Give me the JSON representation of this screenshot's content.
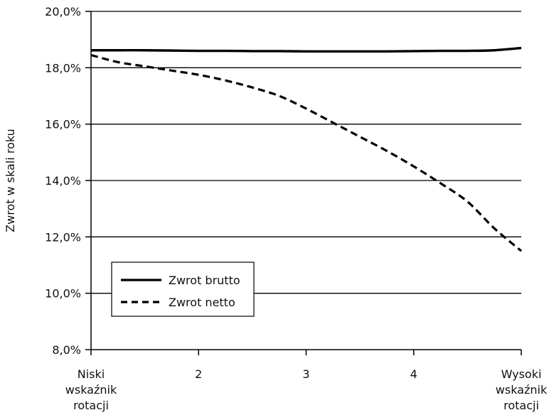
{
  "chart_data": {
    "type": "line",
    "title": "",
    "ylabel": "Zwrot w skali roku",
    "xlabel": "",
    "x": [
      1,
      1.25,
      1.5,
      1.75,
      2,
      2.25,
      2.5,
      2.75,
      3,
      3.25,
      3.5,
      3.75,
      4,
      4.25,
      4.5,
      4.75,
      5
    ],
    "x_ticks": [
      {
        "value": 1,
        "lines": [
          "Niski",
          "wskaźnik",
          "rotacji"
        ]
      },
      {
        "value": 2,
        "lines": [
          "2"
        ]
      },
      {
        "value": 3,
        "lines": [
          "3"
        ]
      },
      {
        "value": 4,
        "lines": [
          "4"
        ]
      },
      {
        "value": 5,
        "lines": [
          "Wysoki",
          "wskaźnik",
          "rotacji"
        ]
      }
    ],
    "xlim": [
      1,
      5
    ],
    "ylim": [
      8,
      20
    ],
    "y_ticks": [
      8,
      10,
      12,
      14,
      16,
      18,
      20
    ],
    "y_tick_labels": [
      "8,0%",
      "10,0%",
      "12,0%",
      "14,0%",
      "16,0%",
      "18,0%",
      "20,0%"
    ],
    "grid": "horizontal",
    "legend_position": "bottom-left",
    "series": [
      {
        "name": "Zwrot brutto",
        "style": "solid",
        "color": "#000000",
        "values": [
          18.62,
          18.62,
          18.62,
          18.61,
          18.6,
          18.6,
          18.59,
          18.59,
          18.58,
          18.58,
          18.58,
          18.58,
          18.59,
          18.6,
          18.6,
          18.62,
          18.7
        ]
      },
      {
        "name": "Zwrot netto",
        "style": "dashed",
        "color": "#000000",
        "values": [
          18.45,
          18.2,
          18.05,
          17.9,
          17.75,
          17.55,
          17.3,
          17.0,
          16.55,
          16.05,
          15.55,
          15.05,
          14.5,
          13.9,
          13.25,
          12.3,
          11.5
        ]
      }
    ]
  }
}
